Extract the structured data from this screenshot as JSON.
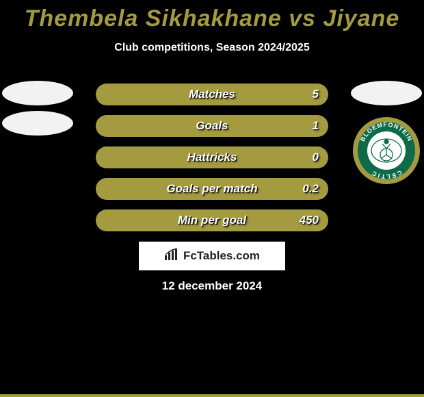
{
  "colors": {
    "background": "#000000",
    "text": "#ffffff",
    "accent": "#a49a3f",
    "oval": "#f2f2f2",
    "badge_outer": "#a49a3f",
    "badge_ring": "#0d6b49",
    "badge_inner": "#ffffff",
    "badge_text": "#0d6b49",
    "brand_bg": "#ffffff",
    "brand_text": "#222222"
  },
  "typography": {
    "title_fontsize": 34,
    "subtitle_fontsize": 16,
    "row_fontsize": 17,
    "brand_fontsize": 17,
    "date_fontsize": 17
  },
  "title": "Thembela Sikhakhane vs Jiyane",
  "subtitle": "Club competitions, Season 2024/2025",
  "rows": [
    {
      "label": "Matches",
      "value": "5"
    },
    {
      "label": "Goals",
      "value": "1"
    },
    {
      "label": "Hattricks",
      "value": "0"
    },
    {
      "label": "Goals per match",
      "value": "0.2"
    },
    {
      "label": "Min per goal",
      "value": "450"
    }
  ],
  "left_side": {
    "ovals": 2
  },
  "right_side": {
    "ovals": 1,
    "club": {
      "name": "Bloemfontein Celtic",
      "ring_text": "BLOEMFONTEIN CELTIC"
    }
  },
  "brand": "FcTables.com",
  "date": "12 december 2024"
}
